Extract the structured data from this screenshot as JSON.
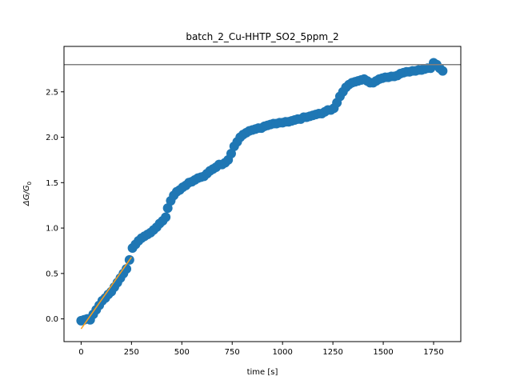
{
  "chart_data": {
    "type": "scatter",
    "title": "batch_2_Cu-HHTP_SO2_5ppm_2",
    "xlabel": "time [s]",
    "ylabel_base": "ΔG/G",
    "ylabel_sub": "0",
    "xlim": [
      -85,
      1885
    ],
    "ylim": [
      -0.25,
      3.0
    ],
    "xticks": [
      0,
      250,
      500,
      750,
      1000,
      1250,
      1500,
      1750
    ],
    "yticks": [
      0.0,
      0.5,
      1.0,
      1.5,
      2.0,
      2.5
    ],
    "xtick_labels": [
      "0",
      "250",
      "500",
      "750",
      "1000",
      "1250",
      "1500",
      "1750"
    ],
    "ytick_labels": [
      "0.0",
      "0.5",
      "1.0",
      "1.5",
      "2.0",
      "2.5"
    ],
    "grid": false,
    "colors": {
      "scatter": "#1f77b4",
      "fit": "#ff9f1a",
      "hline": "#808080"
    },
    "scatter_points": {
      "x": [
        0,
        15,
        30,
        45,
        60,
        75,
        90,
        105,
        120,
        135,
        150,
        165,
        180,
        195,
        210,
        225,
        240,
        255,
        270,
        285,
        300,
        315,
        330,
        345,
        360,
        375,
        390,
        405,
        420,
        430,
        445,
        460,
        475,
        490,
        505,
        520,
        535,
        550,
        565,
        580,
        595,
        610,
        625,
        640,
        655,
        670,
        685,
        700,
        715,
        730,
        745,
        760,
        775,
        790,
        805,
        820,
        835,
        850,
        865,
        880,
        895,
        910,
        925,
        940,
        955,
        970,
        985,
        1000,
        1015,
        1030,
        1045,
        1060,
        1075,
        1090,
        1105,
        1120,
        1135,
        1150,
        1165,
        1180,
        1195,
        1210,
        1225,
        1240,
        1255,
        1270,
        1285,
        1300,
        1315,
        1330,
        1345,
        1360,
        1375,
        1390,
        1405,
        1420,
        1435,
        1450,
        1465,
        1480,
        1495,
        1510,
        1525,
        1540,
        1555,
        1570,
        1585,
        1600,
        1615,
        1630,
        1645,
        1660,
        1675,
        1690,
        1705,
        1720,
        1735,
        1750,
        1765,
        1780,
        1795
      ],
      "y": [
        -0.02,
        -0.01,
        0.0,
        -0.01,
        0.05,
        0.1,
        0.15,
        0.2,
        0.23,
        0.27,
        0.3,
        0.35,
        0.4,
        0.45,
        0.5,
        0.55,
        0.65,
        0.78,
        0.82,
        0.86,
        0.89,
        0.91,
        0.93,
        0.95,
        0.98,
        1.01,
        1.05,
        1.08,
        1.12,
        1.22,
        1.3,
        1.36,
        1.4,
        1.42,
        1.45,
        1.47,
        1.5,
        1.51,
        1.53,
        1.55,
        1.56,
        1.57,
        1.6,
        1.63,
        1.65,
        1.67,
        1.7,
        1.7,
        1.72,
        1.75,
        1.82,
        1.9,
        1.95,
        2.0,
        2.03,
        2.05,
        2.07,
        2.08,
        2.09,
        2.1,
        2.1,
        2.12,
        2.13,
        2.14,
        2.15,
        2.15,
        2.16,
        2.16,
        2.17,
        2.17,
        2.18,
        2.19,
        2.2,
        2.2,
        2.22,
        2.22,
        2.23,
        2.24,
        2.25,
        2.26,
        2.26,
        2.28,
        2.3,
        2.3,
        2.32,
        2.38,
        2.45,
        2.5,
        2.55,
        2.58,
        2.6,
        2.61,
        2.62,
        2.63,
        2.64,
        2.62,
        2.6,
        2.6,
        2.62,
        2.64,
        2.65,
        2.66,
        2.66,
        2.67,
        2.67,
        2.68,
        2.7,
        2.71,
        2.72,
        2.72,
        2.73,
        2.73,
        2.74,
        2.74,
        2.75,
        2.76,
        2.76,
        2.82,
        2.8,
        2.76,
        2.73
      ]
    },
    "fit_line": {
      "x": [
        0,
        250
      ],
      "y": [
        -0.11,
        0.68
      ]
    },
    "hline": {
      "y": 2.8
    }
  }
}
